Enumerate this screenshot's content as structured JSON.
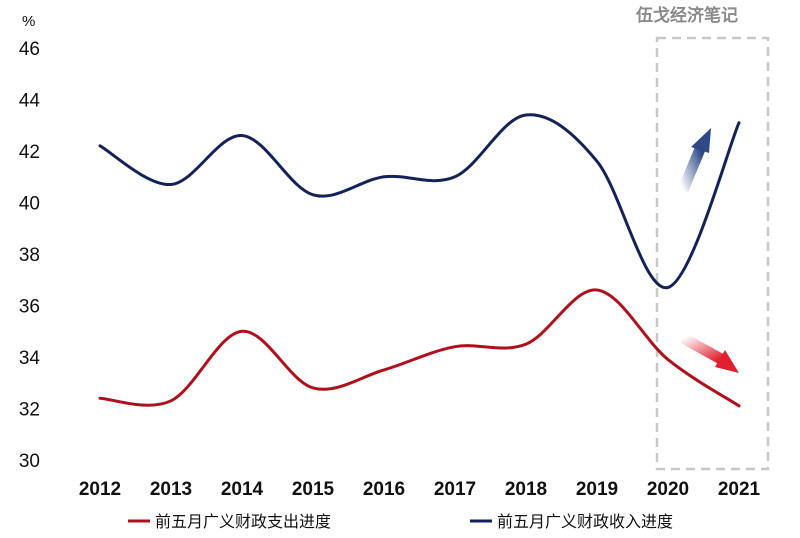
{
  "chart_data": {
    "type": "line",
    "ylabel": "%",
    "watermark": "伍戈经济笔记",
    "x": [
      "2012",
      "2013",
      "2014",
      "2015",
      "2016",
      "2017",
      "2018",
      "2019",
      "2020",
      "2021"
    ],
    "yticks": [
      "46",
      "44",
      "42",
      "40",
      "38",
      "36",
      "34",
      "32",
      "30"
    ],
    "ylim": [
      30,
      46
    ],
    "grid": false,
    "legend_position": "bottom",
    "highlight_region": [
      "2020",
      "2021"
    ],
    "series": [
      {
        "name": "前五月广义财政支出进度",
        "color": "#b0101c",
        "values": [
          32.4,
          32.3,
          35.0,
          32.8,
          33.5,
          34.4,
          34.5,
          36.6,
          33.9,
          32.1
        ]
      },
      {
        "name": "前五月广义财政收入进度",
        "color": "#14225a",
        "values": [
          42.2,
          40.7,
          42.6,
          40.3,
          41.0,
          41.0,
          43.4,
          41.6,
          36.7,
          43.1
        ]
      }
    ],
    "trend_arrows": [
      {
        "series": "前五月广义财政收入进度",
        "direction": "up",
        "color": "#2d4a86"
      },
      {
        "series": "前五月广义财政支出进度",
        "direction": "down",
        "color": "#e0202e"
      }
    ]
  }
}
